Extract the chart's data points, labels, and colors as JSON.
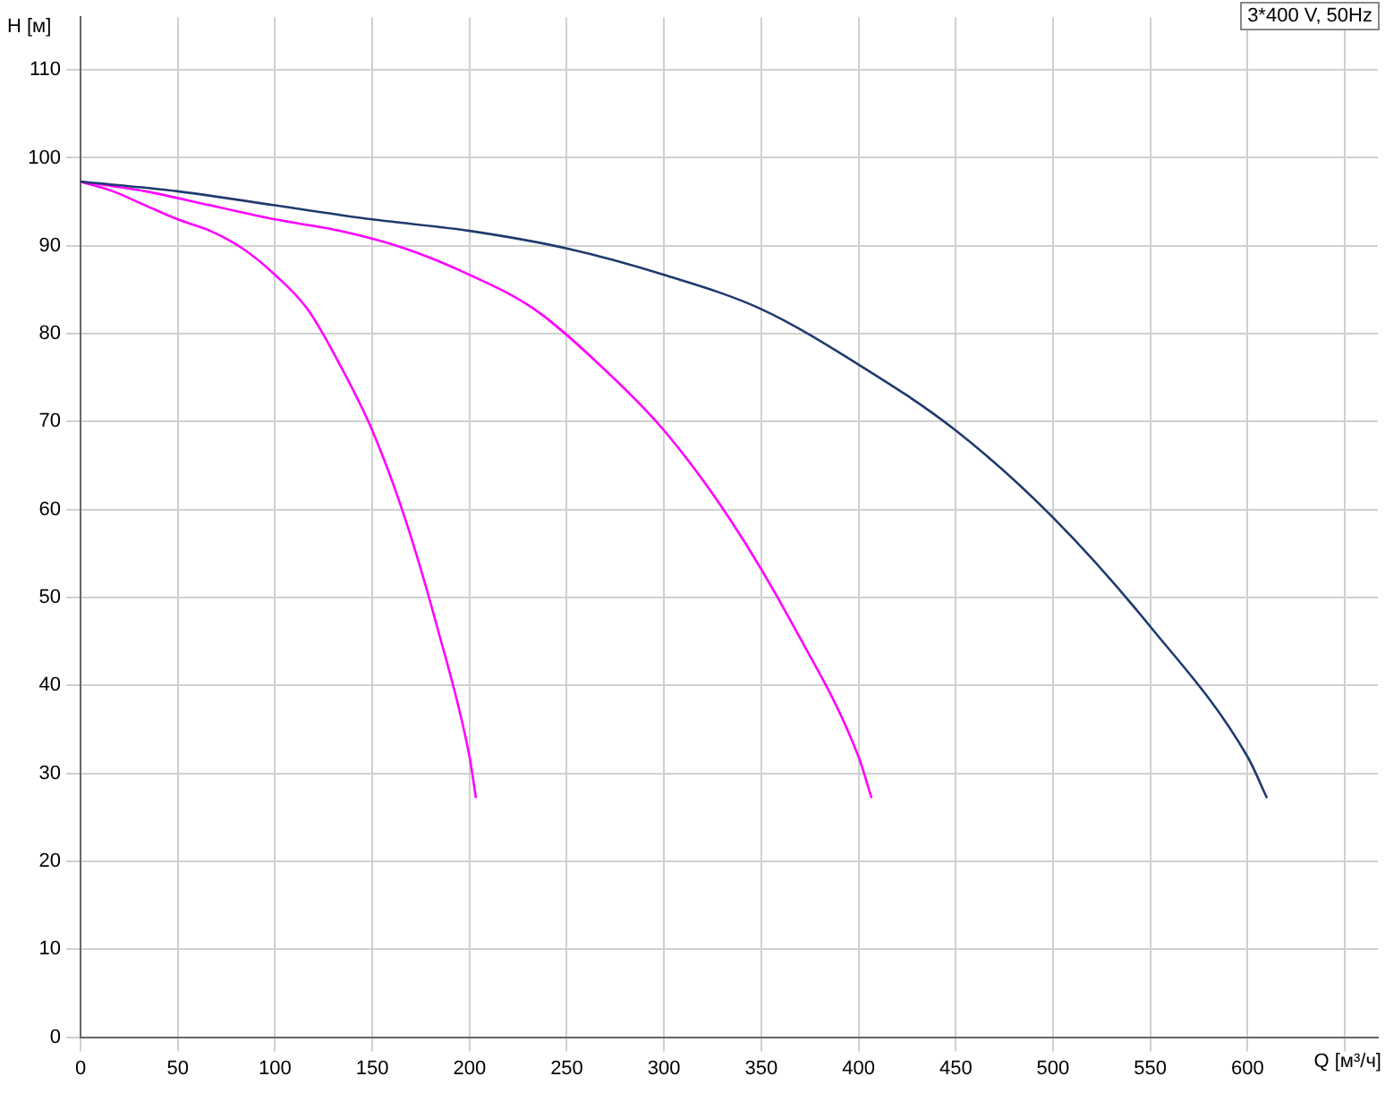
{
  "chart_data": {
    "type": "line",
    "xlabel": "Q [м³/ч]",
    "ylabel": "H [м]",
    "annotations": [
      "3*400 V, 50Hz"
    ],
    "xlim": [
      0,
      667
    ],
    "xticks": [
      0,
      50,
      100,
      150,
      200,
      250,
      300,
      350,
      400,
      450,
      500,
      550,
      600,
      {
        "value": 650,
        "label": null
      }
    ],
    "ylim": [
      0,
      116
    ],
    "yticks": [
      0,
      10,
      20,
      30,
      40,
      50,
      60,
      70,
      80,
      90,
      100,
      110
    ],
    "grid": true,
    "legend": false,
    "marker": "none",
    "line_style": "solid",
    "series": [
      {
        "color": "#1f3a6e",
        "x": [
          0,
          50,
          100,
          150,
          200,
          250,
          300,
          350,
          400,
          450,
          500,
          550,
          600,
          610
        ],
        "values": [
          97.3,
          96.2,
          94.6,
          93.0,
          91.7,
          89.7,
          86.7,
          82.8,
          76.5,
          69.0,
          59.1,
          46.7,
          31.9,
          27.2
        ]
      },
      {
        "color": "#ff00ff",
        "x": [
          0,
          33.3,
          66.7,
          100,
          133.3,
          166.7,
          200,
          233.3,
          266.7,
          300,
          333.3,
          366.7,
          400,
          406.7
        ],
        "values": [
          97.3,
          96.2,
          94.6,
          93.0,
          91.7,
          89.7,
          86.7,
          82.8,
          76.5,
          69.0,
          59.1,
          46.7,
          31.9,
          27.2
        ]
      },
      {
        "color": "#ff00ff",
        "x": [
          0,
          16.7,
          33.3,
          50,
          66.7,
          83.3,
          100,
          116.7,
          133.3,
          150,
          166.7,
          183.3,
          200,
          203.3
        ],
        "values": [
          97.3,
          96.2,
          94.6,
          93.0,
          91.7,
          89.7,
          86.7,
          82.8,
          76.5,
          69.0,
          59.1,
          46.7,
          31.9,
          27.2
        ]
      }
    ]
  }
}
